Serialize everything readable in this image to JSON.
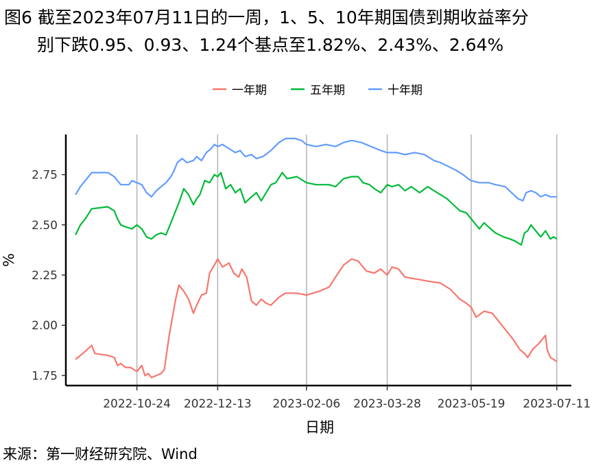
{
  "header": {
    "title_line1": "图6  截至2023年07月11日的一周，1、5、10年期国债到期收益率分",
    "title_line2": "别下跌0.95、0.93、1.24个基点至1.82%、2.43%、2.64%"
  },
  "footer": {
    "source": "来源：第一财经研究院、Wind"
  },
  "chart_data": {
    "type": "line",
    "xlabel": "日期",
    "ylabel": "%",
    "ylim": [
      1.7,
      2.95
    ],
    "yticks": [
      1.75,
      2.0,
      2.25,
      2.5,
      2.75
    ],
    "ytick_labels": [
      "1.75",
      "2.00",
      "2.25",
      "2.50",
      "2.75"
    ],
    "xlim": [
      "2022-09-10",
      "2023-07-20"
    ],
    "xticks": [
      "2022-10-24",
      "2022-12-13",
      "2023-02-06",
      "2023-03-28",
      "2023-05-19",
      "2023-07-11"
    ],
    "vertical_gridlines": true,
    "legend_position": "top",
    "colors": {
      "一年期": "#F8766D",
      "五年期": "#00BA38",
      "十年期": "#619CFF"
    },
    "series": [
      {
        "name": "一年期",
        "color": "#F8766D",
        "points": [
          [
            "2022-09-16",
            1.83
          ],
          [
            "2022-09-22",
            1.87
          ],
          [
            "2022-09-26",
            1.9
          ],
          [
            "2022-09-28",
            1.86
          ],
          [
            "2022-10-06",
            1.85
          ],
          [
            "2022-10-10",
            1.84
          ],
          [
            "2022-10-12",
            1.8
          ],
          [
            "2022-10-14",
            1.81
          ],
          [
            "2022-10-17",
            1.79
          ],
          [
            "2022-10-20",
            1.79
          ],
          [
            "2022-10-24",
            1.77
          ],
          [
            "2022-10-27",
            1.8
          ],
          [
            "2022-10-29",
            1.75
          ],
          [
            "2022-10-31",
            1.76
          ],
          [
            "2022-11-02",
            1.74
          ],
          [
            "2022-11-05",
            1.75
          ],
          [
            "2022-11-08",
            1.76
          ],
          [
            "2022-11-10",
            1.78
          ],
          [
            "2022-11-13",
            1.95
          ],
          [
            "2022-11-15",
            2.04
          ],
          [
            "2022-11-17",
            2.13
          ],
          [
            "2022-11-19",
            2.2
          ],
          [
            "2022-11-22",
            2.17
          ],
          [
            "2022-11-25",
            2.13
          ],
          [
            "2022-11-28",
            2.06
          ],
          [
            "2022-11-30",
            2.1
          ],
          [
            "2022-12-03",
            2.15
          ],
          [
            "2022-12-06",
            2.16
          ],
          [
            "2022-12-08",
            2.26
          ],
          [
            "2022-12-11",
            2.3
          ],
          [
            "2022-12-13",
            2.33
          ],
          [
            "2022-12-16",
            2.29
          ],
          [
            "2022-12-20",
            2.31
          ],
          [
            "2022-12-23",
            2.26
          ],
          [
            "2022-12-26",
            2.24
          ],
          [
            "2022-12-28",
            2.28
          ],
          [
            "2022-12-31",
            2.24
          ],
          [
            "2023-01-03",
            2.12
          ],
          [
            "2023-01-06",
            2.1
          ],
          [
            "2023-01-09",
            2.13
          ],
          [
            "2023-01-12",
            2.11
          ],
          [
            "2023-01-15",
            2.1
          ],
          [
            "2023-01-20",
            2.14
          ],
          [
            "2023-01-24",
            2.16
          ],
          [
            "2023-01-31",
            2.16
          ],
          [
            "2023-02-06",
            2.15
          ],
          [
            "2023-02-14",
            2.17
          ],
          [
            "2023-02-20",
            2.19
          ],
          [
            "2023-02-24",
            2.24
          ],
          [
            "2023-03-01",
            2.3
          ],
          [
            "2023-03-06",
            2.33
          ],
          [
            "2023-03-10",
            2.32
          ],
          [
            "2023-03-15",
            2.27
          ],
          [
            "2023-03-20",
            2.26
          ],
          [
            "2023-03-24",
            2.28
          ],
          [
            "2023-03-28",
            2.25
          ],
          [
            "2023-03-31",
            2.29
          ],
          [
            "2023-04-04",
            2.28
          ],
          [
            "2023-04-08",
            2.24
          ],
          [
            "2023-04-15",
            2.23
          ],
          [
            "2023-04-22",
            2.22
          ],
          [
            "2023-04-30",
            2.21
          ],
          [
            "2023-05-06",
            2.18
          ],
          [
            "2023-05-12",
            2.13
          ],
          [
            "2023-05-16",
            2.11
          ],
          [
            "2023-05-19",
            2.09
          ],
          [
            "2023-05-22",
            2.04
          ],
          [
            "2023-05-27",
            2.07
          ],
          [
            "2023-06-01",
            2.06
          ],
          [
            "2023-06-06",
            2.01
          ],
          [
            "2023-06-10",
            1.97
          ],
          [
            "2023-06-14",
            1.93
          ],
          [
            "2023-06-18",
            1.88
          ],
          [
            "2023-06-21",
            1.86
          ],
          [
            "2023-06-23",
            1.84
          ],
          [
            "2023-06-26",
            1.88
          ],
          [
            "2023-06-30",
            1.91
          ],
          [
            "2023-07-02",
            1.93
          ],
          [
            "2023-07-04",
            1.95
          ],
          [
            "2023-07-05",
            1.88
          ],
          [
            "2023-07-07",
            1.84
          ],
          [
            "2023-07-09",
            1.83
          ],
          [
            "2023-07-11",
            1.82
          ]
        ]
      },
      {
        "name": "五年期",
        "color": "#00BA38",
        "points": [
          [
            "2022-09-16",
            2.45
          ],
          [
            "2022-09-19",
            2.5
          ],
          [
            "2022-09-22",
            2.53
          ],
          [
            "2022-09-26",
            2.58
          ],
          [
            "2022-10-06",
            2.59
          ],
          [
            "2022-10-10",
            2.57
          ],
          [
            "2022-10-12",
            2.53
          ],
          [
            "2022-10-14",
            2.5
          ],
          [
            "2022-10-17",
            2.49
          ],
          [
            "2022-10-21",
            2.48
          ],
          [
            "2022-10-24",
            2.5
          ],
          [
            "2022-10-27",
            2.48
          ],
          [
            "2022-10-30",
            2.44
          ],
          [
            "2022-11-02",
            2.43
          ],
          [
            "2022-11-05",
            2.45
          ],
          [
            "2022-11-08",
            2.46
          ],
          [
            "2022-11-11",
            2.45
          ],
          [
            "2022-11-14",
            2.51
          ],
          [
            "2022-11-17",
            2.57
          ],
          [
            "2022-11-19",
            2.61
          ],
          [
            "2022-11-22",
            2.68
          ],
          [
            "2022-11-25",
            2.65
          ],
          [
            "2022-11-28",
            2.6
          ],
          [
            "2022-11-30",
            2.63
          ],
          [
            "2022-12-02",
            2.65
          ],
          [
            "2022-12-05",
            2.72
          ],
          [
            "2022-12-08",
            2.71
          ],
          [
            "2022-12-11",
            2.75
          ],
          [
            "2022-12-13",
            2.74
          ],
          [
            "2022-12-15",
            2.76
          ],
          [
            "2022-12-18",
            2.68
          ],
          [
            "2022-12-21",
            2.7
          ],
          [
            "2022-12-24",
            2.66
          ],
          [
            "2022-12-27",
            2.68
          ],
          [
            "2022-12-30",
            2.61
          ],
          [
            "2023-01-03",
            2.64
          ],
          [
            "2023-01-06",
            2.66
          ],
          [
            "2023-01-09",
            2.62
          ],
          [
            "2023-01-12",
            2.66
          ],
          [
            "2023-01-15",
            2.7
          ],
          [
            "2023-01-18",
            2.71
          ],
          [
            "2023-01-22",
            2.76
          ],
          [
            "2023-01-25",
            2.73
          ],
          [
            "2023-01-31",
            2.74
          ],
          [
            "2023-02-06",
            2.71
          ],
          [
            "2023-02-12",
            2.7
          ],
          [
            "2023-02-20",
            2.7
          ],
          [
            "2023-02-24",
            2.69
          ],
          [
            "2023-03-01",
            2.73
          ],
          [
            "2023-03-06",
            2.74
          ],
          [
            "2023-03-10",
            2.74
          ],
          [
            "2023-03-13",
            2.71
          ],
          [
            "2023-03-17",
            2.7
          ],
          [
            "2023-03-20",
            2.68
          ],
          [
            "2023-03-24",
            2.66
          ],
          [
            "2023-03-28",
            2.7
          ],
          [
            "2023-03-31",
            2.69
          ],
          [
            "2023-04-04",
            2.7
          ],
          [
            "2023-04-08",
            2.67
          ],
          [
            "2023-04-12",
            2.69
          ],
          [
            "2023-04-17",
            2.66
          ],
          [
            "2023-04-22",
            2.69
          ],
          [
            "2023-04-26",
            2.67
          ],
          [
            "2023-04-30",
            2.65
          ],
          [
            "2023-05-04",
            2.63
          ],
          [
            "2023-05-08",
            2.6
          ],
          [
            "2023-05-12",
            2.57
          ],
          [
            "2023-05-16",
            2.56
          ],
          [
            "2023-05-19",
            2.53
          ],
          [
            "2023-05-22",
            2.5
          ],
          [
            "2023-05-24",
            2.48
          ],
          [
            "2023-05-27",
            2.51
          ],
          [
            "2023-05-31",
            2.48
          ],
          [
            "2023-06-03",
            2.46
          ],
          [
            "2023-06-08",
            2.44
          ],
          [
            "2023-06-12",
            2.43
          ],
          [
            "2023-06-15",
            2.42
          ],
          [
            "2023-06-19",
            2.4
          ],
          [
            "2023-06-21",
            2.46
          ],
          [
            "2023-06-23",
            2.47
          ],
          [
            "2023-06-25",
            2.5
          ],
          [
            "2023-06-28",
            2.47
          ],
          [
            "2023-07-01",
            2.44
          ],
          [
            "2023-07-04",
            2.47
          ],
          [
            "2023-07-07",
            2.43
          ],
          [
            "2023-07-09",
            2.44
          ],
          [
            "2023-07-11",
            2.43
          ]
        ]
      },
      {
        "name": "十年期",
        "color": "#619CFF",
        "points": [
          [
            "2022-09-16",
            2.65
          ],
          [
            "2022-09-19",
            2.69
          ],
          [
            "2022-09-22",
            2.72
          ],
          [
            "2022-09-26",
            2.76
          ],
          [
            "2022-10-06",
            2.76
          ],
          [
            "2022-10-10",
            2.74
          ],
          [
            "2022-10-12",
            2.72
          ],
          [
            "2022-10-14",
            2.7
          ],
          [
            "2022-10-19",
            2.7
          ],
          [
            "2022-10-21",
            2.72
          ],
          [
            "2022-10-24",
            2.71
          ],
          [
            "2022-10-27",
            2.7
          ],
          [
            "2022-10-30",
            2.66
          ],
          [
            "2022-11-02",
            2.64
          ],
          [
            "2022-11-05",
            2.67
          ],
          [
            "2022-11-08",
            2.69
          ],
          [
            "2022-11-11",
            2.71
          ],
          [
            "2022-11-14",
            2.74
          ],
          [
            "2022-11-16",
            2.77
          ],
          [
            "2022-11-18",
            2.81
          ],
          [
            "2022-11-21",
            2.83
          ],
          [
            "2022-11-24",
            2.81
          ],
          [
            "2022-11-28",
            2.82
          ],
          [
            "2022-11-30",
            2.84
          ],
          [
            "2022-12-03",
            2.82
          ],
          [
            "2022-12-06",
            2.86
          ],
          [
            "2022-12-09",
            2.88
          ],
          [
            "2022-12-11",
            2.9
          ],
          [
            "2022-12-13",
            2.89
          ],
          [
            "2022-12-16",
            2.9
          ],
          [
            "2022-12-20",
            2.88
          ],
          [
            "2022-12-24",
            2.86
          ],
          [
            "2022-12-27",
            2.87
          ],
          [
            "2022-12-30",
            2.84
          ],
          [
            "2023-01-03",
            2.85
          ],
          [
            "2023-01-06",
            2.83
          ],
          [
            "2023-01-10",
            2.84
          ],
          [
            "2023-01-15",
            2.87
          ],
          [
            "2023-01-20",
            2.91
          ],
          [
            "2023-01-24",
            2.93
          ],
          [
            "2023-01-30",
            2.93
          ],
          [
            "2023-02-03",
            2.92
          ],
          [
            "2023-02-06",
            2.9
          ],
          [
            "2023-02-12",
            2.89
          ],
          [
            "2023-02-18",
            2.9
          ],
          [
            "2023-02-24",
            2.89
          ],
          [
            "2023-03-01",
            2.91
          ],
          [
            "2023-03-06",
            2.92
          ],
          [
            "2023-03-12",
            2.91
          ],
          [
            "2023-03-18",
            2.89
          ],
          [
            "2023-03-24",
            2.87
          ],
          [
            "2023-03-28",
            2.86
          ],
          [
            "2023-04-03",
            2.86
          ],
          [
            "2023-04-08",
            2.85
          ],
          [
            "2023-04-14",
            2.86
          ],
          [
            "2023-04-20",
            2.85
          ],
          [
            "2023-04-26",
            2.82
          ],
          [
            "2023-04-30",
            2.81
          ],
          [
            "2023-05-05",
            2.79
          ],
          [
            "2023-05-10",
            2.77
          ],
          [
            "2023-05-14",
            2.75
          ],
          [
            "2023-05-17",
            2.73
          ],
          [
            "2023-05-19",
            2.72
          ],
          [
            "2023-05-24",
            2.71
          ],
          [
            "2023-05-30",
            2.71
          ],
          [
            "2023-06-03",
            2.7
          ],
          [
            "2023-06-09",
            2.69
          ],
          [
            "2023-06-13",
            2.66
          ],
          [
            "2023-06-17",
            2.63
          ],
          [
            "2023-06-20",
            2.62
          ],
          [
            "2023-06-22",
            2.66
          ],
          [
            "2023-06-25",
            2.67
          ],
          [
            "2023-06-28",
            2.66
          ],
          [
            "2023-07-01",
            2.64
          ],
          [
            "2023-07-04",
            2.65
          ],
          [
            "2023-07-07",
            2.64
          ],
          [
            "2023-07-09",
            2.64
          ],
          [
            "2023-07-11",
            2.64
          ]
        ]
      }
    ]
  }
}
